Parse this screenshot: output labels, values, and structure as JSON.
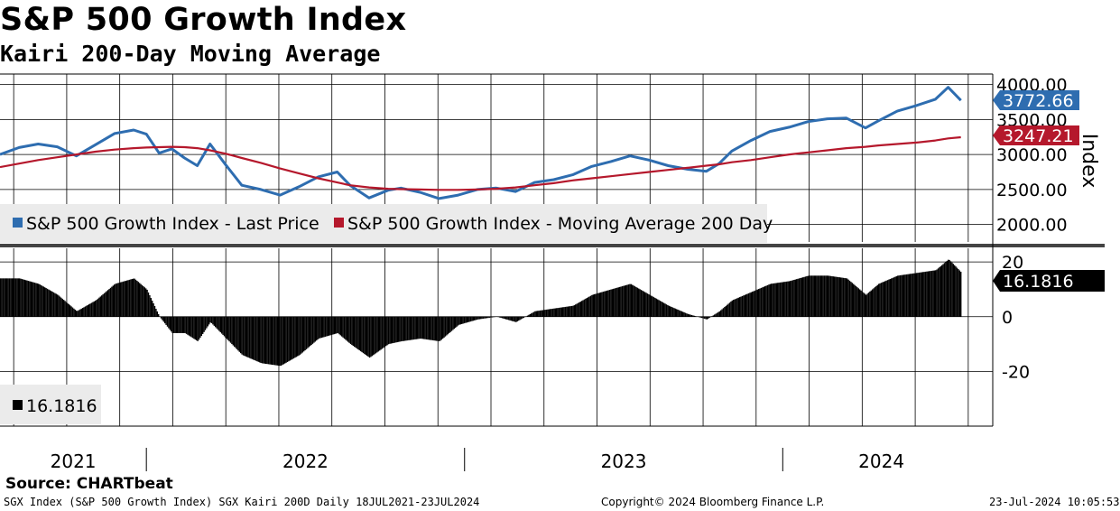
{
  "title": "S&P 500 Growth Index",
  "subtitle": "Kairi 200-Day Moving Average",
  "source": "Source: CHARTbeat",
  "footer": {
    "left": "SGX Index (S&P 500 Growth Index) SGX Kairi 200D  Daily 18JUL2021-23JUL2024",
    "center": "Copyright© 2024 Bloomberg Finance L.P.",
    "right": "23-Jul-2024 10:05:53"
  },
  "chart_data": [
    {
      "type": "line",
      "panel": "upper",
      "ylabel": "Index",
      "ylim": [
        1750,
        4150
      ],
      "yticks": [
        "2000.00",
        "2500.00",
        "3000.00",
        "3500.00",
        "4000.00"
      ],
      "ytick_values": [
        2000,
        2500,
        3000,
        3500,
        4000
      ],
      "x": [
        2021.54,
        2021.6,
        2021.66,
        2021.72,
        2021.78,
        2021.84,
        2021.9,
        2021.96,
        2022.0,
        2022.04,
        2022.08,
        2022.12,
        2022.16,
        2022.2,
        2022.25,
        2022.3,
        2022.36,
        2022.42,
        2022.48,
        2022.54,
        2022.6,
        2022.64,
        2022.7,
        2022.76,
        2022.8,
        2022.86,
        2022.92,
        2022.98,
        2023.04,
        2023.1,
        2023.16,
        2023.22,
        2023.28,
        2023.34,
        2023.4,
        2023.46,
        2023.52,
        2023.58,
        2023.64,
        2023.7,
        2023.76,
        2023.8,
        2023.84,
        2023.9,
        2023.96,
        2024.02,
        2024.08,
        2024.14,
        2024.2,
        2024.26,
        2024.3,
        2024.36,
        2024.42,
        2024.48,
        2024.52,
        2024.56
      ],
      "series": [
        {
          "name": "S&P 500 Growth Index - Last Price",
          "color": "#2e6db0",
          "values": [
            3000,
            3100,
            3150,
            3110,
            2980,
            3140,
            3300,
            3350,
            3290,
            3020,
            3080,
            2950,
            2840,
            3150,
            2850,
            2560,
            2500,
            2420,
            2540,
            2680,
            2750,
            2560,
            2380,
            2490,
            2520,
            2460,
            2370,
            2420,
            2500,
            2520,
            2470,
            2600,
            2640,
            2710,
            2830,
            2900,
            2980,
            2920,
            2840,
            2790,
            2760,
            2870,
            3050,
            3200,
            3330,
            3390,
            3470,
            3510,
            3520,
            3380,
            3480,
            3620,
            3700,
            3790,
            3960,
            3773
          ]
        },
        {
          "name": "S&P 500 Growth Index - Moving Average 200 Day",
          "color": "#b5182c",
          "values": [
            2820,
            2870,
            2920,
            2960,
            3000,
            3040,
            3070,
            3090,
            3100,
            3105,
            3110,
            3105,
            3090,
            3060,
            3010,
            2950,
            2880,
            2800,
            2730,
            2660,
            2600,
            2560,
            2530,
            2510,
            2505,
            2500,
            2495,
            2495,
            2500,
            2510,
            2530,
            2560,
            2590,
            2630,
            2660,
            2690,
            2720,
            2750,
            2780,
            2810,
            2840,
            2860,
            2890,
            2920,
            2960,
            3000,
            3030,
            3060,
            3090,
            3110,
            3130,
            3150,
            3170,
            3200,
            3230,
            3247
          ]
        }
      ],
      "last_labels": [
        "3772.66",
        "3247.21"
      ],
      "legend_position": "bottom-left",
      "legend": [
        "S&P 500 Growth Index - Last Price",
        "S&P 500 Growth Index - Moving Average 200 Day"
      ]
    },
    {
      "type": "bar",
      "panel": "lower",
      "ylim": [
        -40,
        25
      ],
      "yticks": [
        "20",
        "0",
        "-20"
      ],
      "ytick_values": [
        20,
        0,
        -20
      ],
      "x": [
        2021.54,
        2021.6,
        2021.66,
        2021.72,
        2021.78,
        2021.84,
        2021.9,
        2021.96,
        2022.0,
        2022.04,
        2022.08,
        2022.12,
        2022.16,
        2022.2,
        2022.25,
        2022.3,
        2022.36,
        2022.42,
        2022.48,
        2022.54,
        2022.6,
        2022.64,
        2022.7,
        2022.76,
        2022.8,
        2022.86,
        2022.92,
        2022.98,
        2023.04,
        2023.1,
        2023.16,
        2023.22,
        2023.28,
        2023.34,
        2023.4,
        2023.46,
        2023.52,
        2023.58,
        2023.64,
        2023.7,
        2023.76,
        2023.8,
        2023.84,
        2023.9,
        2023.96,
        2024.02,
        2024.08,
        2024.14,
        2024.2,
        2024.26,
        2024.3,
        2024.36,
        2024.42,
        2024.48,
        2024.52,
        2024.56
      ],
      "series": [
        {
          "name": "16.1816",
          "color": "#000000",
          "values": [
            14,
            14,
            12,
            8,
            2,
            6,
            12,
            14,
            10,
            0,
            -6,
            -6,
            -9,
            -2,
            -8,
            -14,
            -17,
            -18,
            -14,
            -8,
            -6,
            -10,
            -15,
            -10,
            -9,
            -8,
            -9,
            -3,
            -1,
            0,
            -2,
            2,
            3,
            4,
            8,
            10,
            12,
            8,
            4,
            1,
            -1,
            2,
            6,
            9,
            12,
            13,
            15,
            15,
            14,
            8,
            12,
            15,
            16,
            17,
            21,
            16.18
          ]
        }
      ],
      "last_label": "16.1816",
      "legend_position": "bottom-left",
      "legend": [
        "16.1816"
      ]
    }
  ],
  "x_axis": {
    "year_labels": [
      "2021",
      "2022",
      "2023",
      "2024"
    ],
    "year_centers": [
      2021.77,
      2022.5,
      2023.5,
      2024.31
    ],
    "boundaries": [
      2022.0,
      2023.0,
      2024.0
    ]
  }
}
